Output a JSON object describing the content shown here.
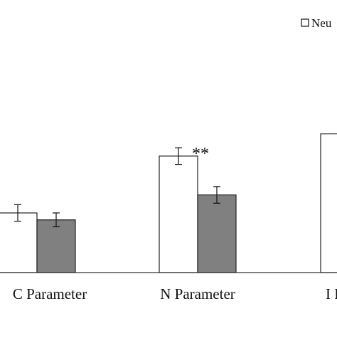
{
  "chart_data": {
    "type": "bar",
    "categories": [
      "C Parameter",
      "N Parameter",
      "I P"
    ],
    "series": [
      {
        "name": "Neu",
        "fill": "#ffffff",
        "values": [
          0.43,
          0.84,
          1.0
        ],
        "errors": [
          0.06,
          0.06,
          null
        ]
      },
      {
        "name": "",
        "fill": "#808080",
        "values": [
          0.38,
          0.56,
          null
        ],
        "errors": [
          0.05,
          0.06,
          null
        ]
      }
    ],
    "annotations": [
      {
        "category_index": 1,
        "text": "**"
      }
    ],
    "legend": {
      "position": "top-right",
      "shown_label": "Neu"
    },
    "ylim": [
      0,
      1.3
    ],
    "grid": false,
    "colors": {
      "axis": "#333333",
      "bar_edge": "#222222",
      "gray_bar": "#808080"
    }
  }
}
